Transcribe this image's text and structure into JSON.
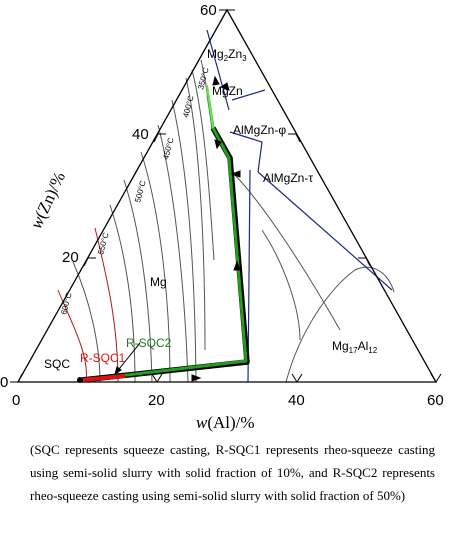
{
  "axes": {
    "x_label_w": "w",
    "x_label_rest": "(Al)/%",
    "y_label_w": "w",
    "y_label_rest": "(Zn)/%",
    "x_ticks": [
      "0",
      "20",
      "40",
      "60"
    ],
    "y_ticks": [
      "0",
      "20",
      "40",
      "60"
    ]
  },
  "phases": {
    "mg2zn3": "Mg2Zn3",
    "mgzn": "MgZn",
    "phi": "AlMgZn-φ",
    "tau": "AlMgZn-τ",
    "mg": "Mg",
    "mg17al12": "Mg17Al12"
  },
  "isotherms": [
    "600°C",
    "550°C",
    "500°C",
    "450°C",
    "400°C",
    "350°C"
  ],
  "paths": {
    "sqc": "SQC",
    "rsqc1": "R-SQC1",
    "rsqc2": "R-SQC2"
  },
  "colors": {
    "boundary": "#1a2a8a",
    "isotherm_hot": "#b01818",
    "isotherm": "#333333",
    "path_green": "#1f9e1f",
    "path_red": "#e01010",
    "path_black": "#000000"
  },
  "caption": "(SQC represents squeeze casting, R-SQC1 represents rheo-squeeze casting using semi-solid slurry with solid fraction of 10%, and R-SQC2 represents rheo-squeeze casting using semi-solid slurry with solid fraction of 50%)"
}
